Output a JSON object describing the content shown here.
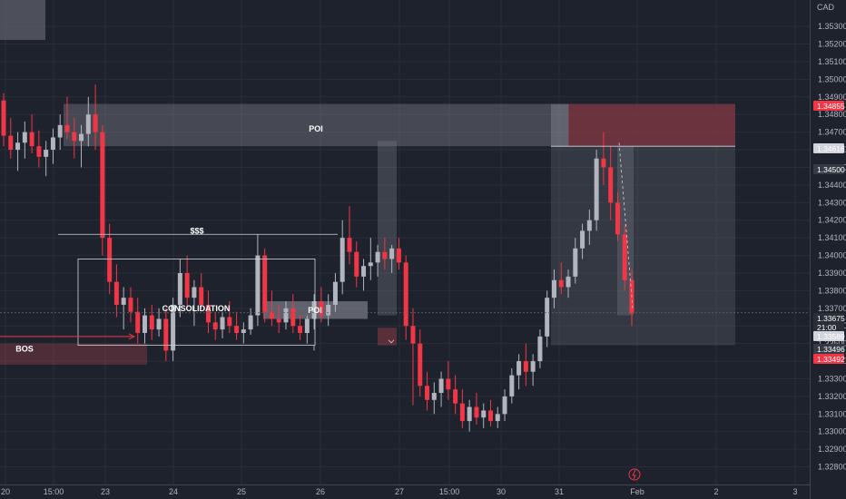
{
  "chart_data": {
    "type": "candlestick",
    "price_axis": {
      "label": "CAD",
      "ylim": [
        1.327,
        1.3545
      ],
      "ticks": [
        "1.35300",
        "1.35200",
        "1.35100",
        "1.35000",
        "1.34900",
        "1.34800",
        "1.34700",
        "1.34600",
        "1.34500",
        "1.34400",
        "1.34300",
        "1.34200",
        "1.34100",
        "1.34000",
        "1.33900",
        "1.33800",
        "1.33700",
        "1.33600",
        "1.33500",
        "1.33400",
        "1.33300",
        "1.33200",
        "1.33100",
        "1.33000",
        "1.32900",
        "1.32800"
      ]
    },
    "time_axis": {
      "ticks": [
        "20",
        "15:00",
        "23",
        "24",
        "25",
        "26",
        "27",
        "15:00",
        "30",
        "31",
        "Feb",
        "2",
        "3"
      ]
    },
    "price_tags": [
      {
        "value": "1.34855",
        "style": "red"
      },
      {
        "value": "1.34616",
        "style": "white"
      },
      {
        "value": "1.34500",
        "style": "dark"
      },
      {
        "value": "1.33675",
        "style": "gray"
      },
      {
        "value": "21:00",
        "style": "gray"
      },
      {
        "value": "1.33589",
        "style": "white"
      },
      {
        "value": "1.33496",
        "style": "dark"
      },
      {
        "value": "1.33492",
        "style": "red"
      }
    ],
    "annotations": [
      {
        "text": "POI"
      },
      {
        "text": "$$$"
      },
      {
        "text": "CONSOLIDATION"
      },
      {
        "text": "POI"
      },
      {
        "text": "BOS"
      }
    ],
    "levels": {
      "last_price": 1.33675,
      "upper_zone": [
        1.3462,
        1.3486
      ],
      "lower_zone": [
        1.3349,
        1.3359
      ],
      "liquidity": 1.3412
    },
    "candles": [
      [
        1.3488,
        1.3492,
        1.3462,
        1.3468
      ],
      [
        1.3468,
        1.3478,
        1.3455,
        1.346
      ],
      [
        1.346,
        1.347,
        1.3448,
        1.3464
      ],
      [
        1.3464,
        1.3476,
        1.3455,
        1.347
      ],
      [
        1.347,
        1.348,
        1.3458,
        1.3462
      ],
      [
        1.3462,
        1.3471,
        1.345,
        1.3456
      ],
      [
        1.3456,
        1.3465,
        1.3445,
        1.346
      ],
      [
        1.346,
        1.3472,
        1.3452,
        1.3467
      ],
      [
        1.3467,
        1.348,
        1.346,
        1.3474
      ],
      [
        1.3474,
        1.349,
        1.3466,
        1.347
      ],
      [
        1.347,
        1.3478,
        1.3455,
        1.3465
      ],
      [
        1.3465,
        1.3474,
        1.345,
        1.3469
      ],
      [
        1.3469,
        1.349,
        1.3462,
        1.348
      ],
      [
        1.348,
        1.3497,
        1.346,
        1.347
      ],
      [
        1.347,
        1.3474,
        1.34,
        1.341
      ],
      [
        1.341,
        1.3418,
        1.3378,
        1.3385
      ],
      [
        1.3385,
        1.3395,
        1.3365,
        1.3372
      ],
      [
        1.3372,
        1.3382,
        1.3358,
        1.3376
      ],
      [
        1.3376,
        1.3382,
        1.3362,
        1.3368
      ],
      [
        1.3368,
        1.3376,
        1.335,
        1.3356
      ],
      [
        1.3356,
        1.337,
        1.335,
        1.3366
      ],
      [
        1.3366,
        1.3372,
        1.3352,
        1.3358
      ],
      [
        1.3358,
        1.337,
        1.3354,
        1.3364
      ],
      [
        1.3364,
        1.337,
        1.334,
        1.3346
      ],
      [
        1.3346,
        1.3376,
        1.334,
        1.3372
      ],
      [
        1.3372,
        1.3398,
        1.3365,
        1.339
      ],
      [
        1.339,
        1.34,
        1.337,
        1.3376
      ],
      [
        1.3376,
        1.3386,
        1.336,
        1.3382
      ],
      [
        1.3382,
        1.339,
        1.337,
        1.3372
      ],
      [
        1.3372,
        1.338,
        1.3356,
        1.3362
      ],
      [
        1.3362,
        1.3368,
        1.3352,
        1.3358
      ],
      [
        1.3358,
        1.3368,
        1.3353,
        1.3365
      ],
      [
        1.3365,
        1.3374,
        1.3356,
        1.336
      ],
      [
        1.336,
        1.3368,
        1.3352,
        1.3356
      ],
      [
        1.3356,
        1.3362,
        1.335,
        1.3358
      ],
      [
        1.3358,
        1.337,
        1.3355,
        1.3366
      ],
      [
        1.3366,
        1.3412,
        1.336,
        1.34
      ],
      [
        1.34,
        1.3404,
        1.3362,
        1.3368
      ],
      [
        1.3368,
        1.338,
        1.336,
        1.3364
      ],
      [
        1.3364,
        1.3372,
        1.3356,
        1.3362
      ],
      [
        1.3362,
        1.3374,
        1.3358,
        1.337
      ],
      [
        1.337,
        1.3378,
        1.3356,
        1.336
      ],
      [
        1.336,
        1.3366,
        1.3352,
        1.3356
      ],
      [
        1.3356,
        1.3366,
        1.335,
        1.3364
      ],
      [
        1.3364,
        1.3378,
        1.3358,
        1.3374
      ],
      [
        1.3374,
        1.3382,
        1.3362,
        1.3366
      ],
      [
        1.3366,
        1.3378,
        1.336,
        1.3372
      ],
      [
        1.3372,
        1.339,
        1.3368,
        1.3385
      ],
      [
        1.3385,
        1.342,
        1.3378,
        1.341
      ],
      [
        1.341,
        1.3428,
        1.3395,
        1.3402
      ],
      [
        1.3402,
        1.3408,
        1.3382,
        1.3388
      ],
      [
        1.3388,
        1.3398,
        1.338,
        1.3394
      ],
      [
        1.3394,
        1.341,
        1.3386,
        1.3396
      ],
      [
        1.3396,
        1.3406,
        1.3388,
        1.3402
      ],
      [
        1.3402,
        1.341,
        1.3392,
        1.3398
      ],
      [
        1.3398,
        1.3406,
        1.339,
        1.3404
      ],
      [
        1.3404,
        1.341,
        1.3392,
        1.3396
      ],
      [
        1.3396,
        1.34,
        1.3352,
        1.336
      ],
      [
        1.336,
        1.337,
        1.3315,
        1.335
      ],
      [
        1.335,
        1.3358,
        1.332,
        1.3326
      ],
      [
        1.3326,
        1.3334,
        1.3312,
        1.3318
      ],
      [
        1.3318,
        1.3328,
        1.331,
        1.3322
      ],
      [
        1.3322,
        1.3334,
        1.3314,
        1.333
      ],
      [
        1.333,
        1.334,
        1.3318,
        1.3324
      ],
      [
        1.3324,
        1.3332,
        1.331,
        1.3316
      ],
      [
        1.3316,
        1.3324,
        1.3302,
        1.3306
      ],
      [
        1.3306,
        1.3318,
        1.33,
        1.3314
      ],
      [
        1.3314,
        1.3322,
        1.3304,
        1.3308
      ],
      [
        1.3308,
        1.3316,
        1.3302,
        1.3312
      ],
      [
        1.3312,
        1.3318,
        1.3303,
        1.3306
      ],
      [
        1.3306,
        1.3314,
        1.3302,
        1.331
      ],
      [
        1.331,
        1.3324,
        1.3306,
        1.332
      ],
      [
        1.332,
        1.3336,
        1.3316,
        1.3332
      ],
      [
        1.3332,
        1.3344,
        1.3324,
        1.334
      ],
      [
        1.334,
        1.335,
        1.3326,
        1.3334
      ],
      [
        1.3334,
        1.3344,
        1.3326,
        1.334
      ],
      [
        1.334,
        1.3358,
        1.3336,
        1.3354
      ],
      [
        1.3354,
        1.338,
        1.3348,
        1.3376
      ],
      [
        1.3376,
        1.3392,
        1.337,
        1.3386
      ],
      [
        1.3386,
        1.3396,
        1.3378,
        1.3382
      ],
      [
        1.3382,
        1.3392,
        1.3376,
        1.3388
      ],
      [
        1.3388,
        1.341,
        1.3384,
        1.3404
      ],
      [
        1.3404,
        1.3418,
        1.3398,
        1.3414
      ],
      [
        1.3414,
        1.3426,
        1.3406,
        1.342
      ],
      [
        1.342,
        1.346,
        1.3414,
        1.3455
      ],
      [
        1.3455,
        1.347,
        1.344,
        1.345
      ],
      [
        1.345,
        1.3462,
        1.342,
        1.343
      ],
      [
        1.343,
        1.3436,
        1.3408,
        1.3412
      ],
      [
        1.3412,
        1.3418,
        1.338,
        1.3386
      ],
      [
        1.3386,
        1.3392,
        1.336,
        1.3367
      ]
    ]
  }
}
